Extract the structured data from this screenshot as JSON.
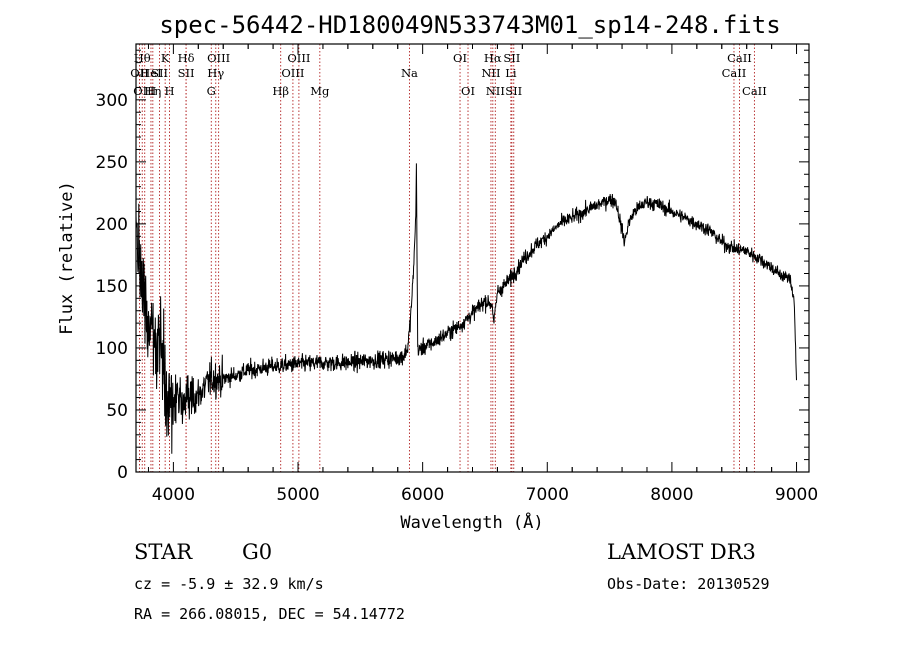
{
  "chart_data": {
    "type": "line",
    "title": "spec-56442-HD180049N533743M01_sp14-248.fits",
    "xlabel": "Wavelength (Å)",
    "ylabel": "Flux (relative)",
    "xlim": [
      3700,
      9100
    ],
    "ylim": [
      0,
      345
    ],
    "x_ticks": [
      4000,
      5000,
      6000,
      7000,
      8000,
      9000
    ],
    "y_ticks": [
      0,
      50,
      100,
      150,
      200,
      250,
      300
    ],
    "spectrum_color": "#000000",
    "line_marker_color": "#b22222",
    "spectrum_anchors": {
      "x": [
        3700,
        3720,
        3750,
        3800,
        3850,
        3900,
        3950,
        4000,
        4100,
        4200,
        4300,
        4400,
        4500,
        4600,
        4800,
        5000,
        5200,
        5400,
        5600,
        5800,
        5850,
        5880,
        5900,
        5920,
        5935,
        5945,
        5950,
        5960,
        5970,
        6000,
        6100,
        6200,
        6300,
        6400,
        6500,
        6560,
        6570,
        6600,
        6700,
        6800,
        6900,
        7000,
        7100,
        7200,
        7300,
        7400,
        7500,
        7550,
        7600,
        7620,
        7650,
        7700,
        7800,
        7900,
        8000,
        8100,
        8200,
        8300,
        8400,
        8500,
        8600,
        8700,
        8800,
        8850,
        8900,
        8950,
        8980,
        9000
      ],
      "y": [
        200,
        175,
        150,
        120,
        110,
        105,
        60,
        60,
        58,
        62,
        75,
        75,
        78,
        82,
        85,
        87,
        88,
        88,
        90,
        92,
        94,
        100,
        120,
        150,
        180,
        210,
        250,
        100,
        98,
        100,
        105,
        112,
        118,
        128,
        138,
        135,
        118,
        145,
        155,
        170,
        182,
        190,
        200,
        205,
        210,
        215,
        220,
        218,
        195,
        185,
        200,
        210,
        218,
        215,
        210,
        205,
        200,
        195,
        185,
        180,
        178,
        172,
        165,
        160,
        158,
        155,
        140,
        75
      ]
    },
    "noise_seed": 56442,
    "spectral_lines": [
      {
        "wavelength": 3728,
        "label": "OII",
        "row": 2
      },
      {
        "wavelength": 3750,
        "label": "Hθ",
        "row": 1
      },
      {
        "wavelength": 3770,
        "label": "OIII",
        "row": 3
      },
      {
        "wavelength": 3820,
        "label": "HeI",
        "row": 2
      },
      {
        "wavelength": 3835,
        "label": "Hη",
        "row": 3
      },
      {
        "wavelength": 3889,
        "label": "SII",
        "row": 2
      },
      {
        "wavelength": 3934,
        "label": "K",
        "row": 1
      },
      {
        "wavelength": 3969,
        "label": "H",
        "row": 3
      },
      {
        "wavelength": 4102,
        "label": "Hδ",
        "row": 1
      },
      {
        "wavelength": 4102,
        "label": "SII",
        "row": 2
      },
      {
        "wavelength": 4304,
        "label": "G",
        "row": 3
      },
      {
        "wavelength": 4340,
        "label": "Hγ",
        "row": 2
      },
      {
        "wavelength": 4363,
        "label": "OIII",
        "row": 1
      },
      {
        "wavelength": 4861,
        "label": "Hβ",
        "row": 3
      },
      {
        "wavelength": 4959,
        "label": "OIII",
        "row": 2
      },
      {
        "wavelength": 5007,
        "label": "OIII",
        "row": 1
      },
      {
        "wavelength": 5175,
        "label": "Mg",
        "row": 3
      },
      {
        "wavelength": 5894,
        "label": "Na",
        "row": 2
      },
      {
        "wavelength": 6300,
        "label": "OI",
        "row": 1
      },
      {
        "wavelength": 6364,
        "label": "OI",
        "row": 3
      },
      {
        "wavelength": 6548,
        "label": "NII",
        "row": 2
      },
      {
        "wavelength": 6563,
        "label": "Hα",
        "row": 1
      },
      {
        "wavelength": 6583,
        "label": "NII",
        "row": 3
      },
      {
        "wavelength": 6716,
        "label": "SII",
        "row": 1
      },
      {
        "wavelength": 6708,
        "label": "Li",
        "row": 2
      },
      {
        "wavelength": 6731,
        "label": "SII",
        "row": 3
      },
      {
        "wavelength": 8498,
        "label": "CaII",
        "row": 2
      },
      {
        "wavelength": 8542,
        "label": "CaII",
        "row": 1
      },
      {
        "wavelength": 8662,
        "label": "CaII",
        "row": 3
      }
    ]
  },
  "info": {
    "object_class": "STAR",
    "subclass": "G0",
    "survey": "LAMOST DR3",
    "redshift_line": "cz = -5.9 ± 32.9 km/s",
    "obs_date": "Obs-Date: 20130529",
    "coords": "RA = 266.08015, DEC =  54.14772"
  }
}
